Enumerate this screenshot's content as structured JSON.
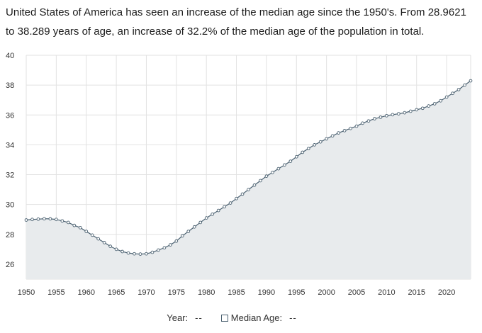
{
  "intro_text": "United States of America has seen an increase of the median age since the 1950's. From 28.9621 to 38.289 years of age, an increase of 32.2% of the median age of the population in total.",
  "legend": {
    "year_label": "Year:",
    "year_value": "--",
    "series_label": "Median Age:",
    "series_value": "--"
  },
  "colors": {
    "line": "#4a6070",
    "fill": "#e8ebed",
    "grid": "#e2e2e2",
    "marker_fill": "#ffffff"
  },
  "chart_data": {
    "type": "area",
    "title": "",
    "xlabel": "",
    "ylabel": "",
    "xlim": [
      1950,
      2024
    ],
    "ylim": [
      25,
      40
    ],
    "yticks": [
      26,
      28,
      30,
      32,
      34,
      36,
      38,
      40
    ],
    "xticks": [
      1950,
      1955,
      1960,
      1965,
      1970,
      1975,
      1980,
      1985,
      1990,
      1995,
      2000,
      2005,
      2010,
      2015,
      2020
    ],
    "grid": true,
    "series": [
      {
        "name": "Median Age",
        "x": [
          1950,
          1951,
          1952,
          1953,
          1954,
          1955,
          1956,
          1957,
          1958,
          1959,
          1960,
          1961,
          1962,
          1963,
          1964,
          1965,
          1966,
          1967,
          1968,
          1969,
          1970,
          1971,
          1972,
          1973,
          1974,
          1975,
          1976,
          1977,
          1978,
          1979,
          1980,
          1981,
          1982,
          1983,
          1984,
          1985,
          1986,
          1987,
          1988,
          1989,
          1990,
          1991,
          1992,
          1993,
          1994,
          1995,
          1996,
          1997,
          1998,
          1999,
          2000,
          2001,
          2002,
          2003,
          2004,
          2005,
          2006,
          2007,
          2008,
          2009,
          2010,
          2011,
          2012,
          2013,
          2014,
          2015,
          2016,
          2017,
          2018,
          2019,
          2020,
          2021,
          2022,
          2023,
          2024
        ],
        "values": [
          28.9621,
          29.0,
          29.02,
          29.05,
          29.04,
          29.0,
          28.9,
          28.8,
          28.6,
          28.45,
          28.2,
          27.95,
          27.7,
          27.45,
          27.2,
          27.0,
          26.85,
          26.75,
          26.7,
          26.68,
          26.7,
          26.8,
          26.95,
          27.1,
          27.3,
          27.55,
          27.9,
          28.2,
          28.5,
          28.8,
          29.1,
          29.35,
          29.6,
          29.85,
          30.1,
          30.4,
          30.7,
          31.0,
          31.3,
          31.6,
          31.9,
          32.15,
          32.4,
          32.65,
          32.9,
          33.2,
          33.5,
          33.75,
          34.0,
          34.2,
          34.4,
          34.6,
          34.8,
          34.95,
          35.1,
          35.25,
          35.45,
          35.6,
          35.75,
          35.85,
          35.95,
          36.02,
          36.08,
          36.15,
          36.25,
          36.35,
          36.45,
          36.6,
          36.75,
          36.95,
          37.2,
          37.45,
          37.7,
          38.0,
          38.289
        ]
      }
    ]
  }
}
